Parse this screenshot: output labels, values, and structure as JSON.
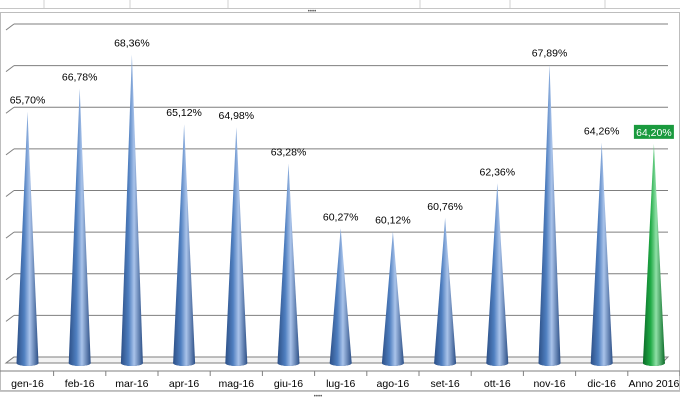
{
  "chart_data": {
    "type": "bar",
    "shape": "cone",
    "categories": [
      "gen-16",
      "feb-16",
      "mar-16",
      "apr-16",
      "mag-16",
      "giu-16",
      "lug-16",
      "ago-16",
      "set-16",
      "ott-16",
      "nov-16",
      "dic-16",
      "Anno 2016"
    ],
    "values": [
      65.7,
      66.78,
      68.36,
      65.12,
      64.98,
      63.28,
      60.27,
      60.12,
      60.76,
      62.36,
      67.89,
      64.26,
      64.2
    ],
    "labels": [
      "65,70%",
      "66,78%",
      "68,36%",
      "65,12%",
      "64,98%",
      "63,28%",
      "60,27%",
      "60,12%",
      "60,76%",
      "62,36%",
      "67,89%",
      "64,26%",
      "64,20%"
    ],
    "ylim": [
      54,
      69.5
    ],
    "gridlines": true,
    "title": "",
    "xlabel": "",
    "ylabel": "",
    "colors": {
      "monthly": "#4f7fc0",
      "monthly_dark": "#2c4f86",
      "monthly_light": "#a9c3ea",
      "total": "#1faa45",
      "total_dark": "#0b6b27",
      "total_light": "#8fe0a6",
      "label_highlight": "#1a9a3e",
      "grid": "#7f7f7f"
    }
  },
  "window": {
    "resize_grip_top": "••••",
    "resize_grip_bottom": "••••"
  }
}
